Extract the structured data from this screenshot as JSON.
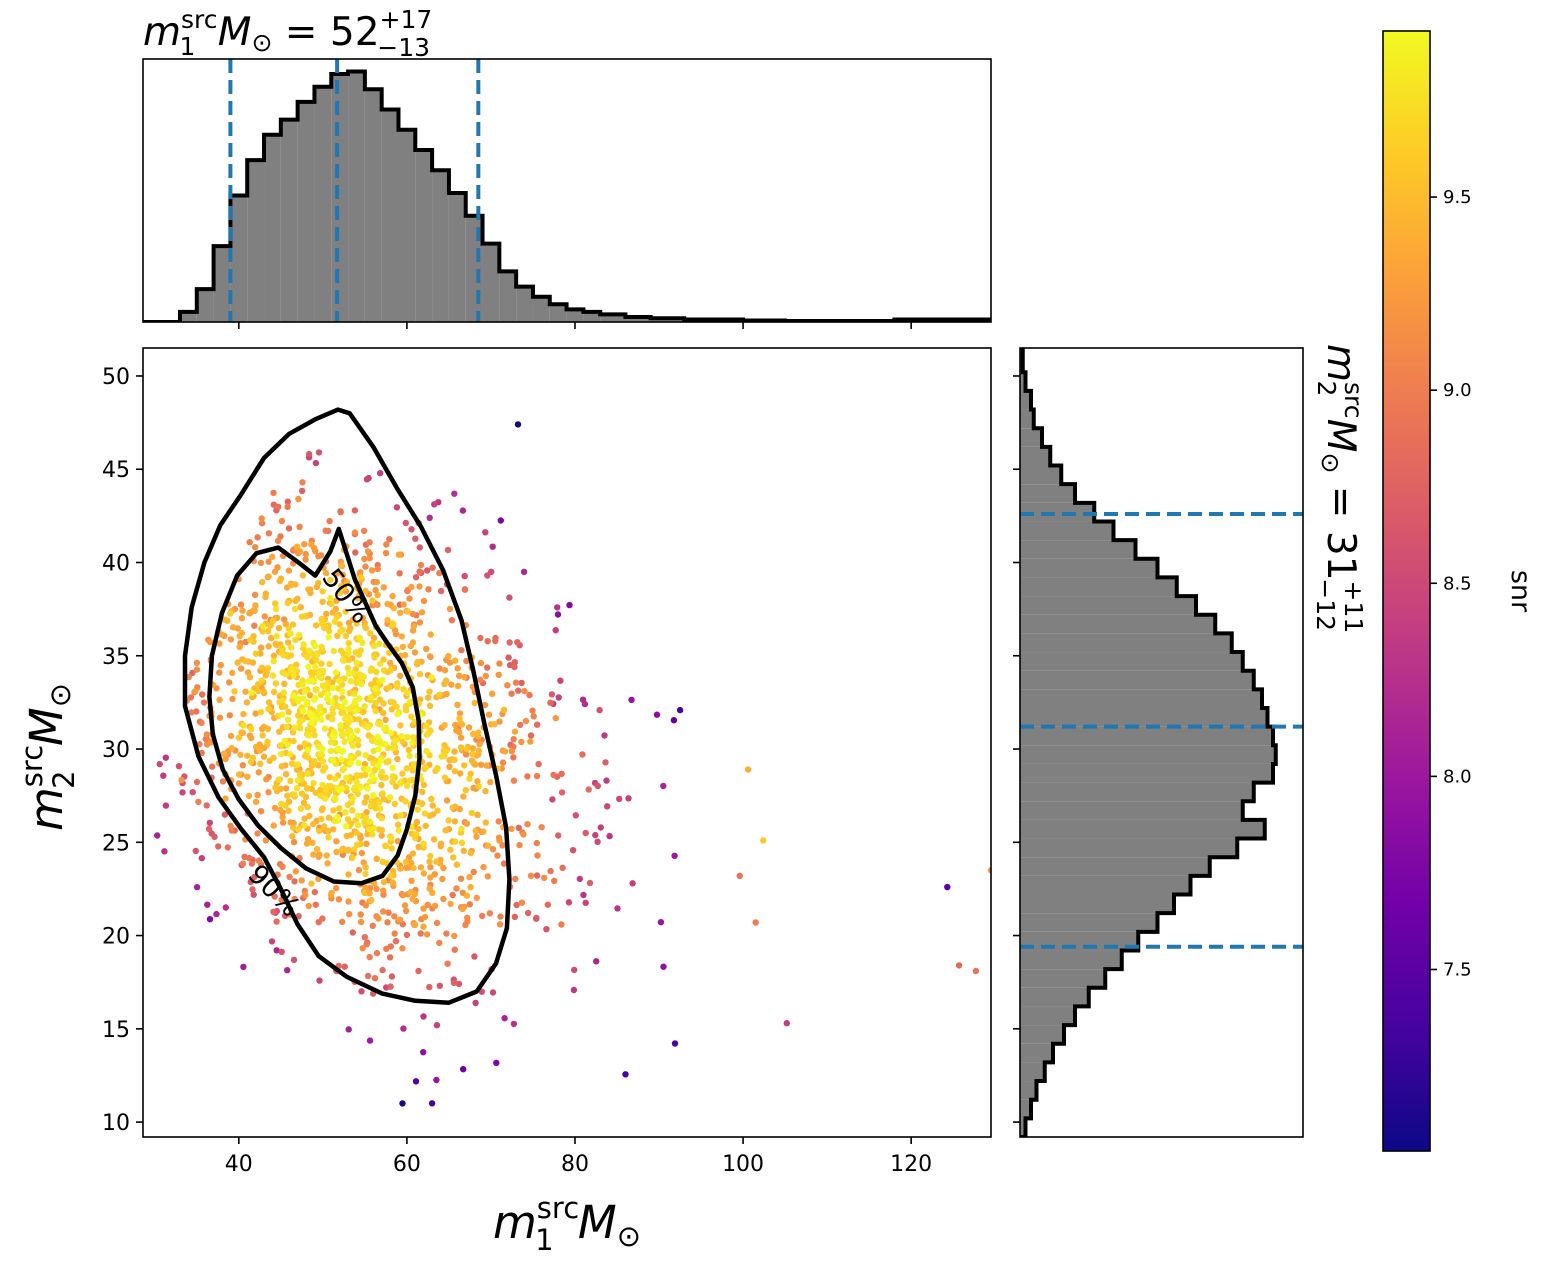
{
  "chart_data": [
    {
      "panel": "top-marginal-histogram",
      "type": "histogram",
      "title_parts": {
        "symbol": "m",
        "sub": "1",
        "sup": "src",
        "unit": " M",
        "unit_sub": "⊙",
        "eq": " = 52",
        "plus": "+17",
        "minus": "−13"
      },
      "x_range": [
        28.6,
        129.5
      ],
      "x_ticks": [
        40,
        60,
        80,
        100,
        120
      ],
      "y_ticks_shown": false,
      "bin_edges": [
        28.6,
        33,
        35,
        37,
        39,
        41,
        43,
        45,
        47,
        49,
        51,
        53,
        55,
        57,
        59,
        61,
        63,
        65,
        67,
        69,
        71,
        73,
        75,
        77,
        79,
        81,
        83,
        86,
        89,
        93,
        100,
        105,
        118,
        129.5
      ],
      "densities": [
        0.0,
        0.04,
        0.13,
        0.3,
        0.5,
        0.64,
        0.74,
        0.8,
        0.87,
        0.93,
        0.98,
        0.99,
        0.92,
        0.84,
        0.76,
        0.68,
        0.6,
        0.51,
        0.42,
        0.31,
        0.2,
        0.14,
        0.1,
        0.07,
        0.05,
        0.04,
        0.03,
        0.02,
        0.015,
        0.01,
        0.006,
        0.004,
        0.01
      ],
      "quantile_lines": [
        39,
        51.7,
        68.5
      ],
      "line_style": {
        "quantile_color": "#1f77b4",
        "fill": "#808080",
        "edge": "#000000"
      }
    },
    {
      "panel": "scatter-main",
      "type": "scatter",
      "xlabel_parts": {
        "symbol": "m",
        "sub": "1",
        "sup": "src",
        "unit": " M",
        "unit_sub": "⊙"
      },
      "ylabel_parts": {
        "symbol": "m",
        "sub": "2",
        "sup": "src",
        "unit": " M",
        "unit_sub": "⊙"
      },
      "xlim": [
        28.6,
        129.5
      ],
      "ylim": [
        9.2,
        51.5
      ],
      "x_ticks": [
        40,
        60,
        80,
        100,
        120
      ],
      "y_ticks": [
        10,
        15,
        20,
        25,
        30,
        35,
        40,
        45,
        50
      ],
      "color_by": "snr",
      "approx_sample_count": 1800,
      "bulk_center": [
        53,
        31
      ],
      "isolated_points": [
        {
          "x": 124.3,
          "y": 22.6,
          "snr": 7.5
        },
        {
          "x": 129.5,
          "y": 23.5,
          "snr": 9.2
        },
        {
          "x": 125.7,
          "y": 18.4,
          "snr": 8.8
        },
        {
          "x": 127.7,
          "y": 18.1,
          "snr": 8.9
        },
        {
          "x": 105.2,
          "y": 15.3,
          "snr": 8.4
        },
        {
          "x": 102.4,
          "y": 25.1,
          "snr": 9.6
        },
        {
          "x": 99.6,
          "y": 23.2,
          "snr": 8.9
        },
        {
          "x": 100.6,
          "y": 28.9,
          "snr": 9.4
        },
        {
          "x": 101.5,
          "y": 20.7,
          "snr": 9.0
        }
      ],
      "contours": [
        {
          "label": "50%",
          "points": [
            [
              51.9,
              41.8
            ],
            [
              50.9,
              40.6
            ],
            [
              49.1,
              39.3
            ],
            [
              47.1,
              40.0
            ],
            [
              44.7,
              40.8
            ],
            [
              42.1,
              40.5
            ],
            [
              39.8,
              39.3
            ],
            [
              38.0,
              37.3
            ],
            [
              36.8,
              35.0
            ],
            [
              36.5,
              32.8
            ],
            [
              36.9,
              30.8
            ],
            [
              38.1,
              28.9
            ],
            [
              40.0,
              27.3
            ],
            [
              42.3,
              25.9
            ],
            [
              45.0,
              24.7
            ],
            [
              48.0,
              23.6
            ],
            [
              51.3,
              22.9
            ],
            [
              54.6,
              22.8
            ],
            [
              57.1,
              23.2
            ],
            [
              58.9,
              24.3
            ],
            [
              60.0,
              25.7
            ],
            [
              61.0,
              27.5
            ],
            [
              61.5,
              29.5
            ],
            [
              61.4,
              31.5
            ],
            [
              60.7,
              33.3
            ],
            [
              59.4,
              34.6
            ],
            [
              57.8,
              35.6
            ],
            [
              56.3,
              36.6
            ],
            [
              55.1,
              37.8
            ],
            [
              53.8,
              39.1
            ]
          ],
          "label_at": [
            52.8,
            38.2
          ],
          "label_rotation": 53
        },
        {
          "label": "90%",
          "points": [
            [
              53.2,
              48.0
            ],
            [
              56.0,
              46.2
            ],
            [
              58.8,
              44.0
            ],
            [
              61.7,
              41.9
            ],
            [
              64.3,
              39.6
            ],
            [
              66.5,
              36.9
            ],
            [
              67.9,
              34.2
            ],
            [
              69.2,
              31.4
            ],
            [
              70.6,
              28.6
            ],
            [
              71.8,
              25.8
            ],
            [
              72.2,
              23.0
            ],
            [
              71.9,
              20.4
            ],
            [
              70.6,
              18.5
            ],
            [
              68.3,
              17.0
            ],
            [
              65.0,
              16.4
            ],
            [
              61.0,
              16.5
            ],
            [
              57.0,
              16.9
            ],
            [
              52.8,
              17.8
            ],
            [
              49.5,
              18.9
            ],
            [
              47.0,
              20.6
            ],
            [
              45.0,
              22.5
            ],
            [
              43.0,
              24.2
            ],
            [
              40.3,
              25.7
            ],
            [
              37.6,
              27.4
            ],
            [
              35.2,
              29.6
            ],
            [
              33.6,
              32.3
            ],
            [
              33.6,
              35.0
            ],
            [
              34.4,
              37.6
            ],
            [
              35.9,
              40.0
            ],
            [
              37.8,
              42.0
            ],
            [
              40.2,
              43.6
            ],
            [
              43.0,
              45.6
            ],
            [
              46.0,
              46.9
            ],
            [
              49.2,
              47.7
            ],
            [
              51.8,
              48.2
            ]
          ],
          "label_at": [
            44.2,
            22.4
          ],
          "label_rotation": 45
        }
      ]
    },
    {
      "panel": "right-marginal-histogram",
      "type": "histogram",
      "orientation": "horizontal",
      "title_parts": {
        "symbol": "m",
        "sub": "2",
        "sup": "src",
        "unit": " M",
        "unit_sub": "⊙",
        "eq": " = 31",
        "plus": "+11",
        "minus": "−12"
      },
      "y_range": [
        9.2,
        51.5
      ],
      "y_ticks_shown": true,
      "y_ticks": [
        10,
        15,
        20,
        25,
        30,
        35,
        40,
        45,
        50
      ],
      "x_ticks_shown": false,
      "bin_edges": [
        9.2,
        10.2,
        11.2,
        12.2,
        13.2,
        14.2,
        15.2,
        16.2,
        17.2,
        18.2,
        19.2,
        20.2,
        21.2,
        22.2,
        23.2,
        24.2,
        25.2,
        26.2,
        27.2,
        28.2,
        29.2,
        30.2,
        31.2,
        32.2,
        33.2,
        34.2,
        35.2,
        36.2,
        37.2,
        38.2,
        39.2,
        40.2,
        41.2,
        42.2,
        43.2,
        44.2,
        45.2,
        46.2,
        47.2,
        48.2,
        49.2,
        50.2,
        51.5
      ],
      "densities": [
        0.02,
        0.04,
        0.06,
        0.09,
        0.12,
        0.16,
        0.2,
        0.25,
        0.31,
        0.37,
        0.43,
        0.5,
        0.56,
        0.62,
        0.69,
        0.79,
        0.89,
        0.81,
        0.85,
        0.92,
        0.93,
        0.92,
        0.9,
        0.88,
        0.85,
        0.81,
        0.77,
        0.71,
        0.64,
        0.57,
        0.5,
        0.42,
        0.34,
        0.27,
        0.2,
        0.15,
        0.11,
        0.08,
        0.05,
        0.04,
        0.02,
        0.01
      ],
      "quantile_lines": [
        19.4,
        31.2,
        42.6
      ],
      "line_style": {
        "quantile_color": "#1f77b4",
        "fill": "#808080",
        "edge": "#000000"
      }
    },
    {
      "panel": "colorbar",
      "type": "colorbar",
      "label": "snr",
      "label_rotation": 90,
      "range": [
        7.03,
        9.93
      ],
      "ticks": [
        "7.5",
        "8.0",
        "8.5",
        "9.0",
        "9.5"
      ],
      "colormap": "plasma",
      "stops": [
        "#0d0887",
        "#46039f",
        "#7201a8",
        "#9c179e",
        "#bd3786",
        "#d8576b",
        "#ed7953",
        "#fb9f3a",
        "#fdca26",
        "#f0f921"
      ]
    }
  ]
}
